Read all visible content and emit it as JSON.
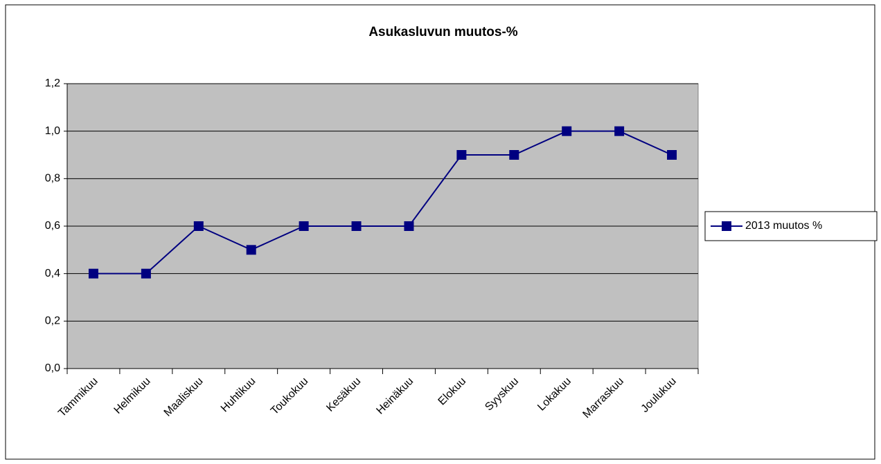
{
  "chart_data": {
    "type": "line",
    "title": "Asukasluvun  muutos-%",
    "categories": [
      "Tammikuu",
      "Helmikuu",
      "Maaliskuu",
      "Huhtikuu",
      "Toukokuu",
      "Kesäkuu",
      "Heinäkuu",
      "Elokuu",
      "Syyskuu",
      "Lokakuu",
      "Marraskuu",
      "Joulukuu"
    ],
    "series": [
      {
        "name": "2013 muutos %",
        "color": "#000080",
        "values": [
          0.4,
          0.4,
          0.6,
          0.5,
          0.6,
          0.6,
          0.6,
          0.9,
          0.9,
          1.0,
          1.0,
          0.9
        ]
      }
    ],
    "ylim": [
      0,
      1.2
    ],
    "yticks": [
      {
        "value": 0,
        "label": "0,0"
      },
      {
        "value": 0.2,
        "label": "0,2"
      },
      {
        "value": 0.4,
        "label": "0,4"
      },
      {
        "value": 0.6,
        "label": "0,6"
      },
      {
        "value": 0.8,
        "label": "0,8"
      },
      {
        "value": 1.0,
        "label": "1,0"
      },
      {
        "value": 1.2,
        "label": "1,2"
      }
    ],
    "grid": true,
    "legend": "right"
  }
}
